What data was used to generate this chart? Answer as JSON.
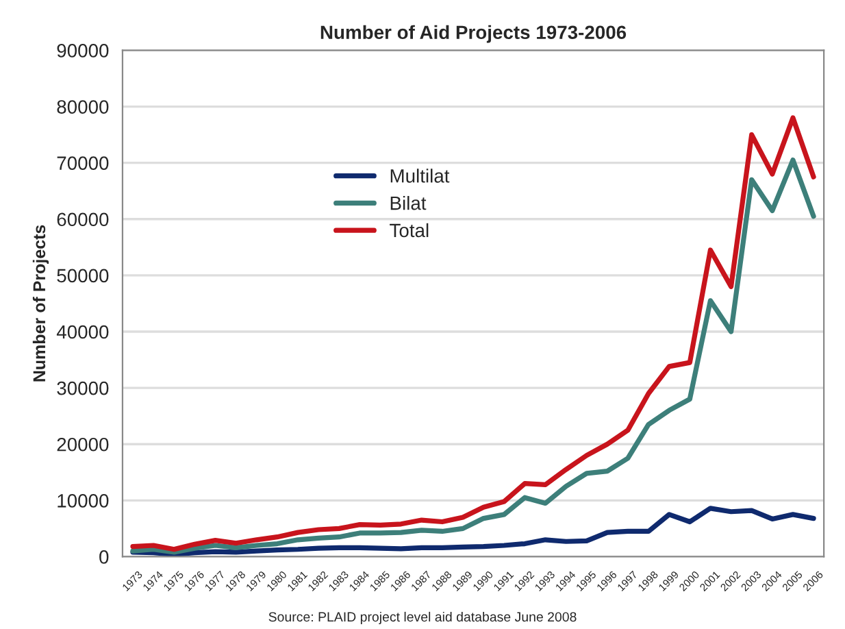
{
  "chart_data": {
    "type": "line",
    "title": "Number of Aid Projects 1973-2006",
    "ylabel": "Number of Projects",
    "categories": [
      "1973",
      "1974",
      "1975",
      "1976",
      "1977",
      "1978",
      "1979",
      "1980",
      "1981",
      "1982",
      "1983",
      "1984",
      "1985",
      "1986",
      "1987",
      "1988",
      "1989",
      "1990",
      "1991",
      "1992",
      "1993",
      "1994",
      "1995",
      "1996",
      "1997",
      "1998",
      "1999",
      "2000",
      "2001",
      "2002",
      "2003",
      "2004",
      "2005",
      "2006"
    ],
    "series": [
      {
        "name": "Multilat",
        "color": "#0f2a6e",
        "values": [
          800,
          700,
          400,
          700,
          900,
          800,
          1000,
          1200,
          1300,
          1500,
          1600,
          1600,
          1500,
          1400,
          1600,
          1600,
          1700,
          1800,
          2000,
          2300,
          3000,
          2700,
          2800,
          4300,
          4500,
          4500,
          7500,
          6200,
          8600,
          8000,
          8200,
          6700,
          7500,
          6800
        ]
      },
      {
        "name": "Bilat",
        "color": "#3d7f7a",
        "values": [
          1000,
          1300,
          800,
          1500,
          2000,
          1600,
          2000,
          2300,
          3000,
          3300,
          3500,
          4200,
          4200,
          4300,
          4700,
          4500,
          5000,
          6800,
          7500,
          10500,
          9500,
          12500,
          14800,
          15200,
          17500,
          23500,
          26000,
          28000,
          45500,
          40000,
          67000,
          61500,
          70500,
          60500
        ]
      },
      {
        "name": "Total",
        "color": "#c8141c",
        "values": [
          1800,
          2000,
          1300,
          2200,
          2900,
          2400,
          3000,
          3500,
          4300,
          4800,
          5000,
          5700,
          5600,
          5800,
          6500,
          6200,
          7000,
          8800,
          9800,
          13000,
          12800,
          15500,
          18000,
          20000,
          22500,
          29000,
          33800,
          34500,
          54500,
          48000,
          75000,
          68000,
          78000,
          67500
        ]
      }
    ],
    "ylim": [
      0,
      90000
    ],
    "yticks": [
      0,
      10000,
      20000,
      30000,
      40000,
      50000,
      60000,
      70000,
      80000,
      90000
    ],
    "grid": "y",
    "legend": "top left",
    "line_style": "solid",
    "marker": "none",
    "annotations": [
      "Source: PLAID project level aid database June 2008"
    ]
  }
}
